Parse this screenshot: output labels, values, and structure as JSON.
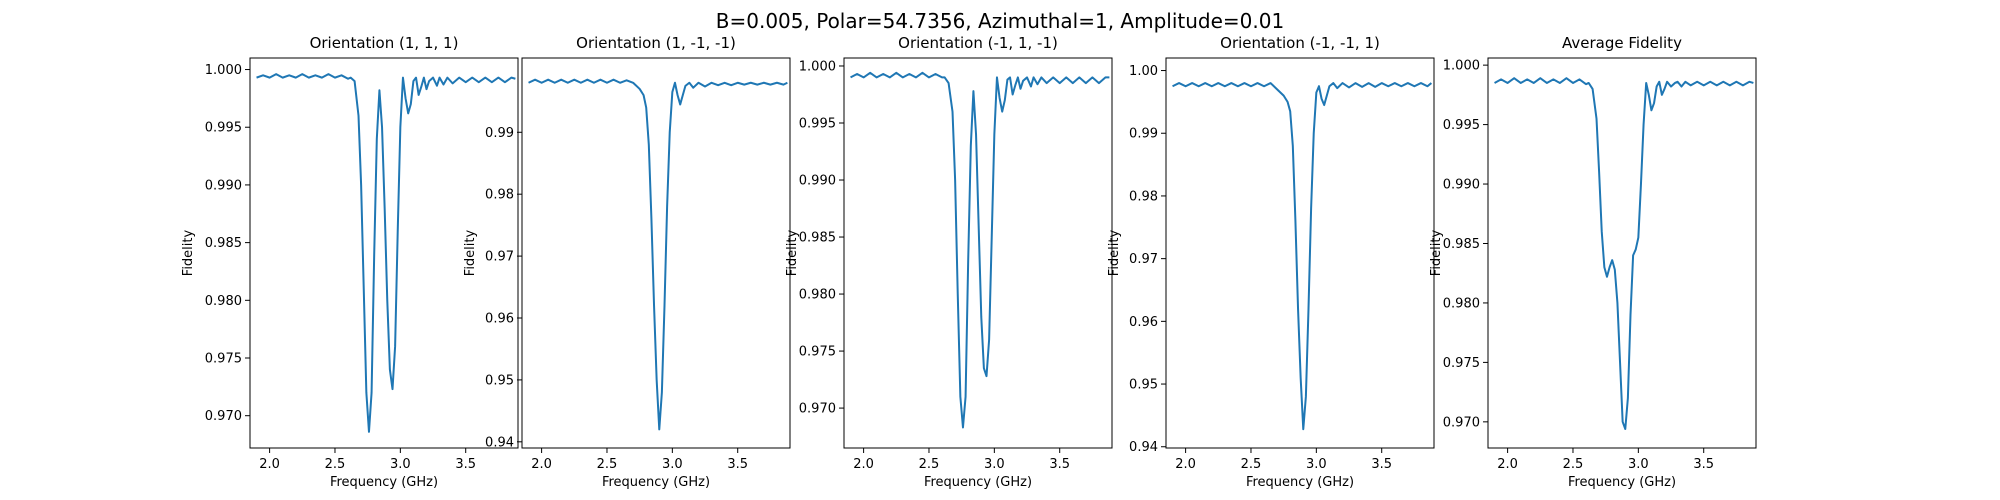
{
  "figure": {
    "suptitle": "B=0.005, Polar=54.7356, Azimuthal=1, Amplitude=0.01",
    "line_color": "#1f77b4"
  },
  "chart_data": [
    {
      "type": "line",
      "title": "Orientation (1, 1, 1)",
      "xlabel": "Frequency (GHz)",
      "ylabel": "Fidelity",
      "xlim": [
        1.85,
        3.9
      ],
      "ylim": [
        0.9672,
        1.001
      ],
      "xticks": [
        2.0,
        2.5,
        3.0,
        3.5
      ],
      "yticks": [
        0.97,
        0.975,
        0.98,
        0.985,
        0.99,
        0.995,
        1.0
      ],
      "xtick_labels": [
        "2.0",
        "2.5",
        "3.0",
        "3.5"
      ],
      "ytick_labels": [
        "0.970",
        "0.975",
        "0.980",
        "0.985",
        "0.990",
        "0.995",
        "1.000"
      ],
      "series": [
        {
          "x": [
            1.9,
            1.95,
            2.0,
            2.05,
            2.1,
            2.15,
            2.2,
            2.25,
            2.3,
            2.35,
            2.4,
            2.45,
            2.5,
            2.55,
            2.6,
            2.62,
            2.65,
            2.68,
            2.7,
            2.72,
            2.74,
            2.76,
            2.78,
            2.8,
            2.82,
            2.84,
            2.86,
            2.88,
            2.9,
            2.92,
            2.94,
            2.96,
            2.98,
            3.0,
            3.02,
            3.04,
            3.06,
            3.08,
            3.1,
            3.12,
            3.14,
            3.16,
            3.18,
            3.2,
            3.22,
            3.25,
            3.28,
            3.3,
            3.33,
            3.36,
            3.4,
            3.45,
            3.5,
            3.55,
            3.6,
            3.65,
            3.7,
            3.75,
            3.8,
            3.85,
            3.88
          ],
          "y": [
            0.9993,
            0.9995,
            0.9993,
            0.9996,
            0.9993,
            0.9995,
            0.9993,
            0.9996,
            0.9993,
            0.9995,
            0.9993,
            0.9996,
            0.9993,
            0.9995,
            0.9992,
            0.9993,
            0.999,
            0.996,
            0.99,
            0.981,
            0.972,
            0.9686,
            0.972,
            0.984,
            0.994,
            0.9982,
            0.995,
            0.988,
            0.98,
            0.974,
            0.9723,
            0.976,
            0.986,
            0.995,
            0.9993,
            0.9975,
            0.9962,
            0.997,
            0.999,
            0.9993,
            0.9978,
            0.9985,
            0.9993,
            0.9983,
            0.999,
            0.9993,
            0.9986,
            0.9993,
            0.9987,
            0.9993,
            0.9988,
            0.9993,
            0.9989,
            0.9993,
            0.9989,
            0.9993,
            0.9989,
            0.9993,
            0.9989,
            0.9993,
            0.9992
          ]
        }
      ]
    },
    {
      "type": "line",
      "title": "Orientation (1, -1, -1)",
      "xlabel": "Frequency (GHz)",
      "ylabel": "Fidelity",
      "xlim": [
        1.85,
        3.9
      ],
      "ylim": [
        0.939,
        1.002
      ],
      "xticks": [
        2.0,
        2.5,
        3.0,
        3.5
      ],
      "yticks": [
        0.94,
        0.95,
        0.96,
        0.97,
        0.98,
        0.99
      ],
      "xtick_labels": [
        "2.0",
        "2.5",
        "3.0",
        "3.5"
      ],
      "ytick_labels": [
        "0.94",
        "0.95",
        "0.96",
        "0.97",
        "0.98",
        "0.99"
      ],
      "series": [
        {
          "x": [
            1.9,
            1.95,
            2.0,
            2.05,
            2.1,
            2.15,
            2.2,
            2.25,
            2.3,
            2.35,
            2.4,
            2.45,
            2.5,
            2.55,
            2.6,
            2.65,
            2.7,
            2.75,
            2.78,
            2.8,
            2.82,
            2.84,
            2.86,
            2.88,
            2.9,
            2.92,
            2.94,
            2.96,
            2.98,
            3.0,
            3.02,
            3.04,
            3.06,
            3.08,
            3.1,
            3.13,
            3.16,
            3.2,
            3.25,
            3.3,
            3.35,
            3.4,
            3.45,
            3.5,
            3.55,
            3.6,
            3.65,
            3.7,
            3.75,
            3.8,
            3.85,
            3.88
          ],
          "y": [
            0.998,
            0.9985,
            0.998,
            0.9985,
            0.998,
            0.9985,
            0.998,
            0.9985,
            0.998,
            0.9985,
            0.998,
            0.9985,
            0.998,
            0.9985,
            0.998,
            0.9984,
            0.998,
            0.997,
            0.996,
            0.994,
            0.988,
            0.976,
            0.962,
            0.95,
            0.942,
            0.948,
            0.962,
            0.978,
            0.99,
            0.9965,
            0.998,
            0.996,
            0.9945,
            0.996,
            0.9975,
            0.998,
            0.9972,
            0.998,
            0.9974,
            0.998,
            0.9976,
            0.998,
            0.9976,
            0.998,
            0.9977,
            0.998,
            0.9977,
            0.998,
            0.9977,
            0.998,
            0.9977,
            0.998
          ]
        }
      ]
    },
    {
      "type": "line",
      "title": "Orientation (-1, 1, -1)",
      "xlabel": "Frequency (GHz)",
      "ylabel": "Fidelity",
      "xlim": [
        1.85,
        3.9
      ],
      "ylim": [
        0.9665,
        1.0007
      ],
      "xticks": [
        2.0,
        2.5,
        3.0,
        3.5
      ],
      "yticks": [
        0.97,
        0.975,
        0.98,
        0.985,
        0.99,
        0.995,
        1.0
      ],
      "xtick_labels": [
        "2.0",
        "2.5",
        "3.0",
        "3.5"
      ],
      "ytick_labels": [
        "0.970",
        "0.975",
        "0.980",
        "0.985",
        "0.990",
        "0.995",
        "1.000"
      ],
      "series": [
        {
          "x": [
            1.9,
            1.95,
            2.0,
            2.05,
            2.1,
            2.15,
            2.2,
            2.25,
            2.3,
            2.35,
            2.4,
            2.45,
            2.5,
            2.55,
            2.6,
            2.62,
            2.65,
            2.68,
            2.7,
            2.72,
            2.74,
            2.76,
            2.78,
            2.8,
            2.82,
            2.84,
            2.86,
            2.88,
            2.9,
            2.92,
            2.94,
            2.96,
            2.98,
            3.0,
            3.02,
            3.04,
            3.06,
            3.08,
            3.1,
            3.12,
            3.14,
            3.16,
            3.18,
            3.2,
            3.22,
            3.25,
            3.28,
            3.3,
            3.33,
            3.36,
            3.4,
            3.45,
            3.5,
            3.55,
            3.6,
            3.65,
            3.7,
            3.75,
            3.8,
            3.85,
            3.88
          ],
          "y": [
            0.999,
            0.9993,
            0.999,
            0.9994,
            0.999,
            0.9993,
            0.999,
            0.9994,
            0.999,
            0.9993,
            0.999,
            0.9994,
            0.999,
            0.9993,
            0.999,
            0.999,
            0.9985,
            0.996,
            0.99,
            0.98,
            0.971,
            0.9683,
            0.971,
            0.983,
            0.993,
            0.9978,
            0.994,
            0.986,
            0.978,
            0.9735,
            0.9728,
            0.976,
            0.985,
            0.994,
            0.999,
            0.9972,
            0.996,
            0.997,
            0.9988,
            0.999,
            0.9975,
            0.9983,
            0.999,
            0.998,
            0.9987,
            0.999,
            0.9982,
            0.999,
            0.9984,
            0.999,
            0.9985,
            0.999,
            0.9985,
            0.999,
            0.9985,
            0.999,
            0.9985,
            0.999,
            0.9985,
            0.999,
            0.999
          ]
        }
      ]
    },
    {
      "type": "line",
      "title": "Orientation (-1, -1, 1)",
      "xlabel": "Frequency (GHz)",
      "ylabel": "Fidelity",
      "xlim": [
        1.85,
        3.9
      ],
      "ylim": [
        0.9398,
        1.002
      ],
      "xticks": [
        2.0,
        2.5,
        3.0,
        3.5
      ],
      "yticks": [
        0.94,
        0.95,
        0.96,
        0.97,
        0.98,
        0.99,
        1.0
      ],
      "xtick_labels": [
        "2.0",
        "2.5",
        "3.0",
        "3.5"
      ],
      "ytick_labels": [
        "0.94",
        "0.95",
        "0.96",
        "0.97",
        "0.98",
        "0.99",
        "1.00"
      ],
      "series": [
        {
          "x": [
            1.9,
            1.95,
            2.0,
            2.05,
            2.1,
            2.15,
            2.2,
            2.25,
            2.3,
            2.35,
            2.4,
            2.45,
            2.5,
            2.55,
            2.6,
            2.65,
            2.7,
            2.75,
            2.78,
            2.8,
            2.82,
            2.84,
            2.86,
            2.88,
            2.9,
            2.92,
            2.94,
            2.96,
            2.98,
            3.0,
            3.02,
            3.04,
            3.06,
            3.08,
            3.1,
            3.13,
            3.16,
            3.2,
            3.25,
            3.3,
            3.35,
            3.4,
            3.45,
            3.5,
            3.55,
            3.6,
            3.65,
            3.7,
            3.75,
            3.8,
            3.85,
            3.88
          ],
          "y": [
            0.9975,
            0.998,
            0.9975,
            0.998,
            0.9975,
            0.998,
            0.9975,
            0.998,
            0.9975,
            0.998,
            0.9975,
            0.998,
            0.9975,
            0.998,
            0.9975,
            0.998,
            0.997,
            0.996,
            0.995,
            0.9935,
            0.988,
            0.976,
            0.962,
            0.951,
            0.9428,
            0.948,
            0.962,
            0.978,
            0.99,
            0.9965,
            0.9975,
            0.9955,
            0.9945,
            0.996,
            0.9975,
            0.998,
            0.9972,
            0.998,
            0.9973,
            0.998,
            0.9974,
            0.998,
            0.9974,
            0.998,
            0.9975,
            0.998,
            0.9975,
            0.998,
            0.9975,
            0.998,
            0.9975,
            0.998
          ]
        }
      ]
    },
    {
      "type": "line",
      "title": "Average Fidelity",
      "xlabel": "Frequency (GHz)",
      "ylabel": "Fidelity",
      "xlim": [
        1.85,
        3.9
      ],
      "ylim": [
        0.9678,
        1.0006
      ],
      "xticks": [
        2.0,
        2.5,
        3.0,
        3.5
      ],
      "yticks": [
        0.97,
        0.975,
        0.98,
        0.985,
        0.99,
        0.995,
        1.0
      ],
      "xtick_labels": [
        "2.0",
        "2.5",
        "3.0",
        "3.5"
      ],
      "ytick_labels": [
        "0.970",
        "0.975",
        "0.980",
        "0.985",
        "0.990",
        "0.995",
        "1.000"
      ],
      "series": [
        {
          "x": [
            1.9,
            1.95,
            2.0,
            2.05,
            2.1,
            2.15,
            2.2,
            2.25,
            2.3,
            2.35,
            2.4,
            2.45,
            2.5,
            2.55,
            2.6,
            2.62,
            2.65,
            2.68,
            2.7,
            2.72,
            2.74,
            2.76,
            2.78,
            2.8,
            2.82,
            2.84,
            2.86,
            2.88,
            2.9,
            2.92,
            2.94,
            2.96,
            2.98,
            3.0,
            3.02,
            3.04,
            3.06,
            3.08,
            3.1,
            3.12,
            3.14,
            3.16,
            3.18,
            3.2,
            3.22,
            3.25,
            3.28,
            3.3,
            3.33,
            3.36,
            3.4,
            3.45,
            3.5,
            3.55,
            3.6,
            3.65,
            3.7,
            3.75,
            3.8,
            3.85,
            3.88
          ],
          "y": [
            0.9985,
            0.9988,
            0.9985,
            0.9989,
            0.9985,
            0.9988,
            0.9985,
            0.9989,
            0.9985,
            0.9988,
            0.9985,
            0.9989,
            0.9985,
            0.9988,
            0.9984,
            0.9985,
            0.998,
            0.9955,
            0.991,
            0.986,
            0.983,
            0.9822,
            0.983,
            0.9836,
            0.9828,
            0.98,
            0.975,
            0.97,
            0.9694,
            0.972,
            0.979,
            0.984,
            0.9845,
            0.9855,
            0.99,
            0.995,
            0.9985,
            0.9975,
            0.9962,
            0.9968,
            0.9982,
            0.9986,
            0.9975,
            0.998,
            0.9986,
            0.9982,
            0.9985,
            0.9986,
            0.9982,
            0.9986,
            0.9983,
            0.9986,
            0.9983,
            0.9986,
            0.9983,
            0.9986,
            0.9983,
            0.9986,
            0.9983,
            0.9986,
            0.9985
          ]
        }
      ]
    }
  ]
}
